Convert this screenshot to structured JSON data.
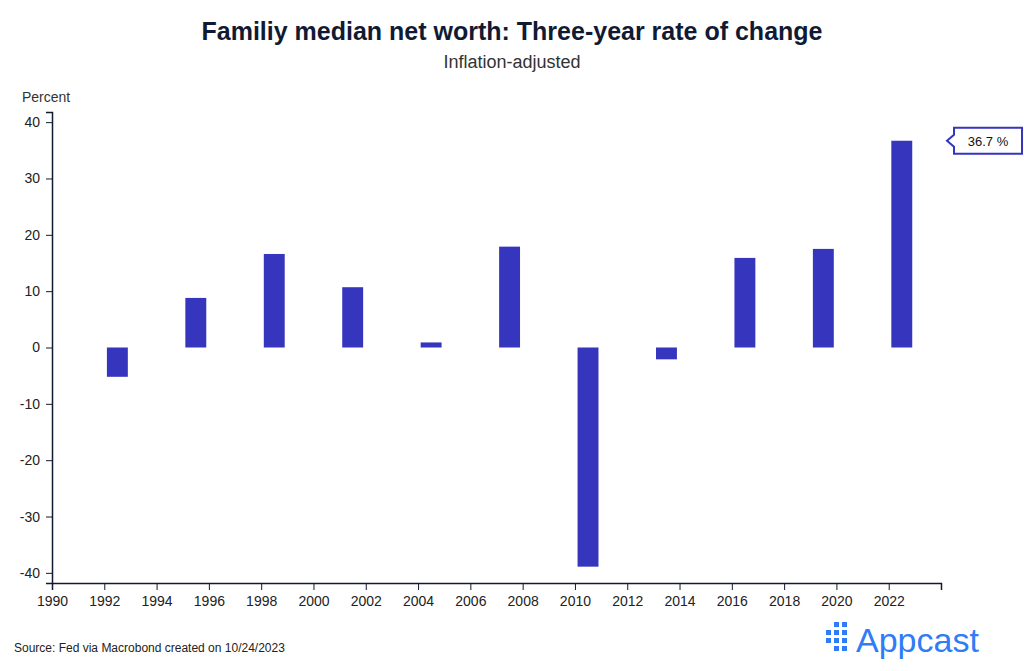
{
  "chart_data": {
    "type": "bar",
    "title": "Familiy median net worth: Three-year rate of change",
    "subtitle": "Inflation-adjusted",
    "y_label": "Percent",
    "x": [
      1992.5,
      1995.5,
      1998.5,
      2001.5,
      2004.5,
      2007.5,
      2010.5,
      2013.5,
      2016.5,
      2019.5,
      2022.5
    ],
    "values": [
      -5.2,
      8.8,
      16.6,
      10.7,
      0.9,
      17.9,
      -38.9,
      -2.1,
      15.9,
      17.5,
      36.7
    ],
    "color": "#3535bd",
    "xlim": [
      1990,
      2024
    ],
    "xticks": [
      1990,
      1992,
      1994,
      1996,
      1998,
      2000,
      2002,
      2004,
      2006,
      2008,
      2010,
      2012,
      2014,
      2016,
      2018,
      2020,
      2022
    ],
    "ylim": [
      -41.8,
      41.8
    ],
    "yticks": [
      -40,
      -30,
      -20,
      -10,
      0,
      10,
      20,
      30,
      40
    ],
    "grid": false,
    "annotation": "36.7 %",
    "source": "Source: Fed via Macrobond created on 10/24/2023",
    "logo": "Appcast"
  }
}
